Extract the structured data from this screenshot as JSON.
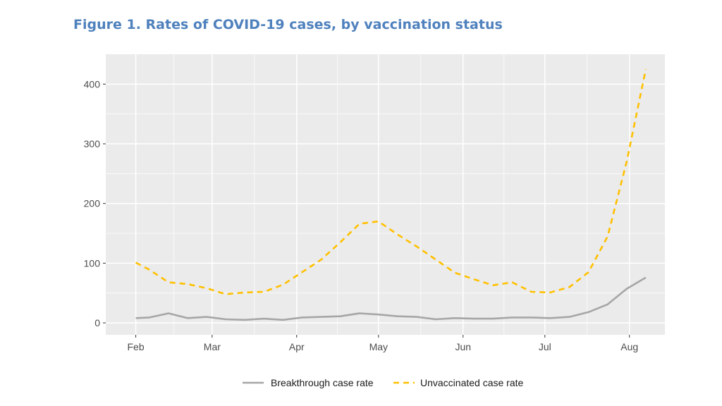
{
  "title": "Figure 1. Rates of COVID-19 cases, by vaccination status",
  "chart_data": {
    "type": "line",
    "title": "Figure 1. Rates of COVID-19 cases, by vaccination status",
    "xlabel": "",
    "ylabel": "",
    "x_axis": {
      "type": "date",
      "ticks": [
        {
          "date": "2021-02-01",
          "label": "Feb"
        },
        {
          "date": "2021-03-01",
          "label": "Mar"
        },
        {
          "date": "2021-04-01",
          "label": "Apr"
        },
        {
          "date": "2021-05-01",
          "label": "May"
        },
        {
          "date": "2021-06-01",
          "label": "Jun"
        },
        {
          "date": "2021-07-01",
          "label": "Jul"
        },
        {
          "date": "2021-08-01",
          "label": "Aug"
        }
      ]
    },
    "xlim": [
      "2021-01-21",
      "2021-08-14"
    ],
    "ylim": [
      -20,
      450
    ],
    "y_ticks": [
      0,
      100,
      200,
      300,
      400
    ],
    "grid": true,
    "panel_background": "#ebebeb",
    "legend_position": "bottom",
    "x": [
      "2021-02-01",
      "2021-02-06",
      "2021-02-13",
      "2021-02-20",
      "2021-02-27",
      "2021-03-06",
      "2021-03-13",
      "2021-03-20",
      "2021-03-27",
      "2021-04-03",
      "2021-04-10",
      "2021-04-17",
      "2021-04-24",
      "2021-05-01",
      "2021-05-08",
      "2021-05-15",
      "2021-05-22",
      "2021-05-29",
      "2021-06-05",
      "2021-06-12",
      "2021-06-19",
      "2021-06-26",
      "2021-07-03",
      "2021-07-10",
      "2021-07-17",
      "2021-07-24",
      "2021-07-31",
      "2021-08-07"
    ],
    "series": [
      {
        "name": "Breakthrough case rate",
        "color": "#a6a6a6",
        "dash": "solid",
        "values": [
          8,
          9,
          16,
          8,
          10,
          6,
          5,
          7,
          5,
          9,
          10,
          11,
          16,
          14,
          11,
          10,
          6,
          8,
          7,
          7,
          9,
          9,
          8,
          10,
          18,
          31,
          57,
          76
        ]
      },
      {
        "name": "Unvaccinated case rate",
        "color": "#ffc000",
        "dash": "dashed",
        "values": [
          101,
          89,
          68,
          65,
          58,
          48,
          51,
          52,
          64,
          85,
          106,
          135,
          166,
          170,
          148,
          128,
          106,
          84,
          73,
          63,
          68,
          52,
          51,
          60,
          85,
          145,
          270,
          425
        ]
      }
    ]
  }
}
